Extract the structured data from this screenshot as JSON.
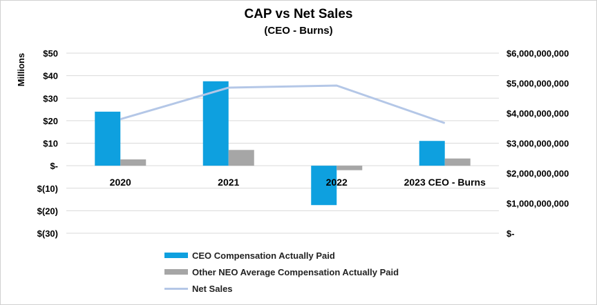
{
  "chart_data": {
    "type": "bar+line",
    "title": "CAP vs Net Sales",
    "subtitle": "(CEO - Burns)",
    "ylabel": "Millions",
    "categories": [
      "2020",
      "2021",
      "2022",
      "2023 CEO - Burns"
    ],
    "left_axis": {
      "range": [
        -30,
        50
      ],
      "ticks": [
        {
          "value": 50,
          "label": "$50"
        },
        {
          "value": 40,
          "label": "$40"
        },
        {
          "value": 30,
          "label": "$30"
        },
        {
          "value": 20,
          "label": "$20"
        },
        {
          "value": 10,
          "label": "$10"
        },
        {
          "value": 0,
          "label": "$-"
        },
        {
          "value": -10,
          "label": "$(10)"
        },
        {
          "value": -20,
          "label": "$(20)"
        },
        {
          "value": -30,
          "label": "$(30)"
        }
      ]
    },
    "right_axis": {
      "range": [
        0,
        6000000000
      ],
      "ticks": [
        {
          "value": 6000000000,
          "label": "$6,000,000,000"
        },
        {
          "value": 5000000000,
          "label": "$5,000,000,000"
        },
        {
          "value": 4000000000,
          "label": "$4,000,000,000"
        },
        {
          "value": 3000000000,
          "label": "$3,000,000,000"
        },
        {
          "value": 2000000000,
          "label": "$2,000,000,000"
        },
        {
          "value": 1000000000,
          "label": "$1,000,000,000"
        },
        {
          "value": 0,
          "label": "$-"
        }
      ]
    },
    "series": [
      {
        "name": "CEO Compensation Actually Paid",
        "type": "bar",
        "axis": "left",
        "color": "#0ea0df",
        "values": [
          24,
          37.5,
          -17.5,
          11
        ]
      },
      {
        "name": "Other NEO Average Compensation Actually Paid",
        "type": "bar",
        "axis": "left",
        "color": "#a6a6a6",
        "values": [
          2.8,
          7,
          -2,
          3.2
        ]
      },
      {
        "name": "Net Sales",
        "type": "line",
        "axis": "right",
        "color": "#b4c7e7",
        "values": [
          3800000000,
          4850000000,
          4920000000,
          3670000000
        ]
      }
    ],
    "legend_position": "bottom",
    "grid": true
  }
}
